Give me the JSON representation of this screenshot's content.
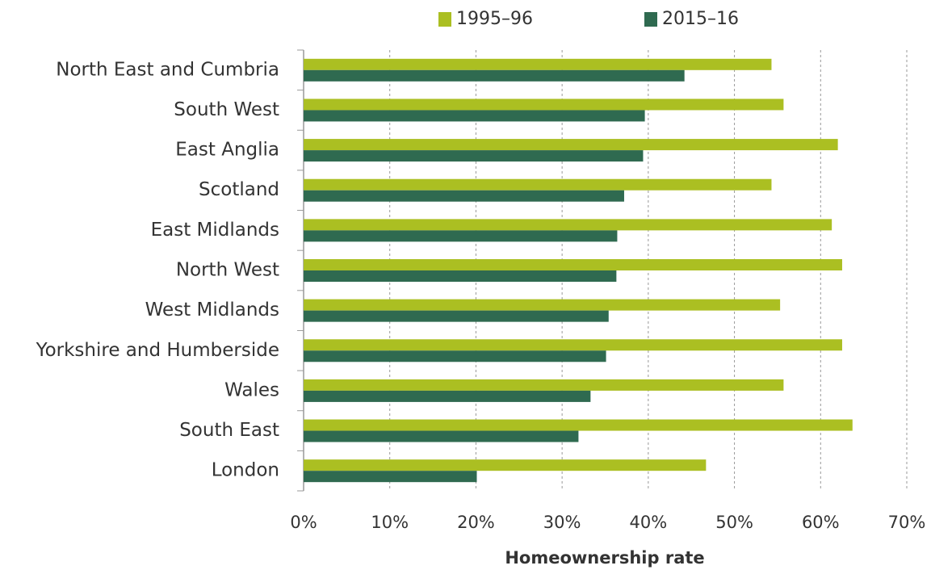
{
  "chart_data": {
    "type": "bar",
    "orientation": "horizontal",
    "x_axis_label": "Homeownership rate",
    "categories": [
      "North East and Cumbria",
      "South West",
      "East Anglia",
      "Scotland",
      "East Midlands",
      "North West",
      "West Midlands",
      "Yorkshire and Humberside",
      "Wales",
      "South East",
      "London"
    ],
    "series": [
      {
        "name": "1995–96",
        "color": "#abbf22",
        "values": [
          54.3,
          55.7,
          62.0,
          54.3,
          61.3,
          62.5,
          55.3,
          62.5,
          55.7,
          63.7,
          46.7
        ]
      },
      {
        "name": "2015–16",
        "color": "#2f6a50",
        "values": [
          44.2,
          39.6,
          39.4,
          37.2,
          36.4,
          36.3,
          35.4,
          35.1,
          33.3,
          31.9,
          20.1
        ]
      }
    ],
    "xlim": [
      0,
      70
    ],
    "xticks": [
      {
        "value": 0,
        "label": "0%"
      },
      {
        "value": 10,
        "label": "10%"
      },
      {
        "value": 20,
        "label": "20%"
      },
      {
        "value": 30,
        "label": "30%"
      },
      {
        "value": 40,
        "label": "40%"
      },
      {
        "value": 50,
        "label": "50%"
      },
      {
        "value": 60,
        "label": "60%"
      },
      {
        "value": 70,
        "label": "70%"
      }
    ],
    "grid": true,
    "legend": "top"
  }
}
